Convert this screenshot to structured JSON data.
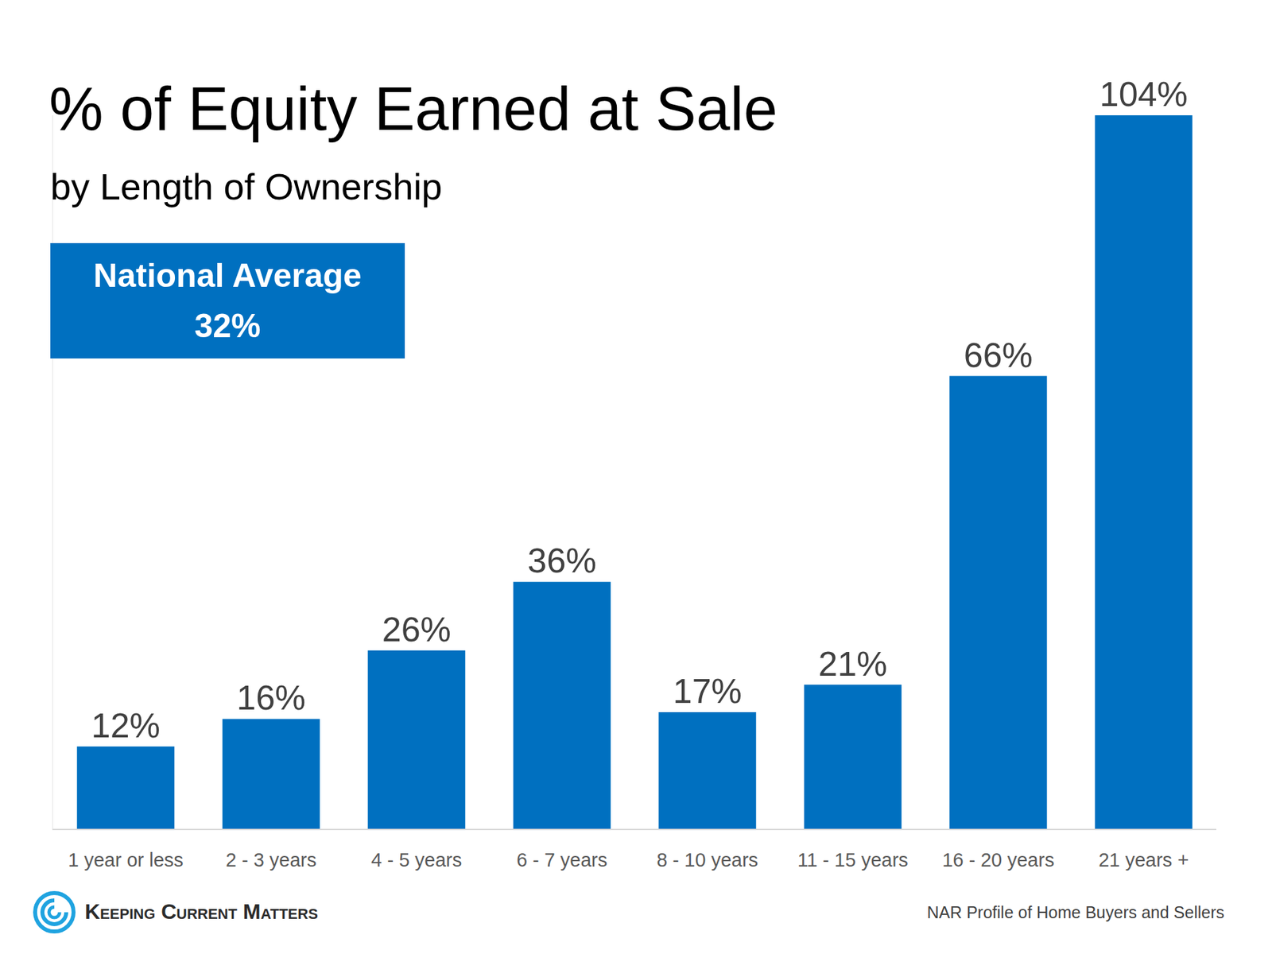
{
  "chart_data": {
    "type": "bar",
    "title": "% of Equity Earned at Sale",
    "subtitle": "by Length of Ownership",
    "categories": [
      "1 year or less",
      "2 - 3 years",
      "4 - 5 years",
      "6 - 7 years",
      "8 - 10 years",
      "11 - 15 years",
      "16 - 20 years",
      "21 years +"
    ],
    "values": [
      12,
      16,
      26,
      36,
      17,
      21,
      66,
      104
    ],
    "value_labels": [
      "12%",
      "16%",
      "26%",
      "36%",
      "17%",
      "21%",
      "66%",
      "104%"
    ],
    "color": "#0070c0",
    "ylim": [
      0,
      104
    ],
    "yticks": [],
    "grid": false,
    "data_labels": true,
    "tick_labels": "x",
    "callout": {
      "text": "National Average",
      "value": 32,
      "value_label": "32%"
    }
  },
  "brand": "Keeping Current Matters",
  "source": "NAR Profile of Home Buyers and Sellers"
}
